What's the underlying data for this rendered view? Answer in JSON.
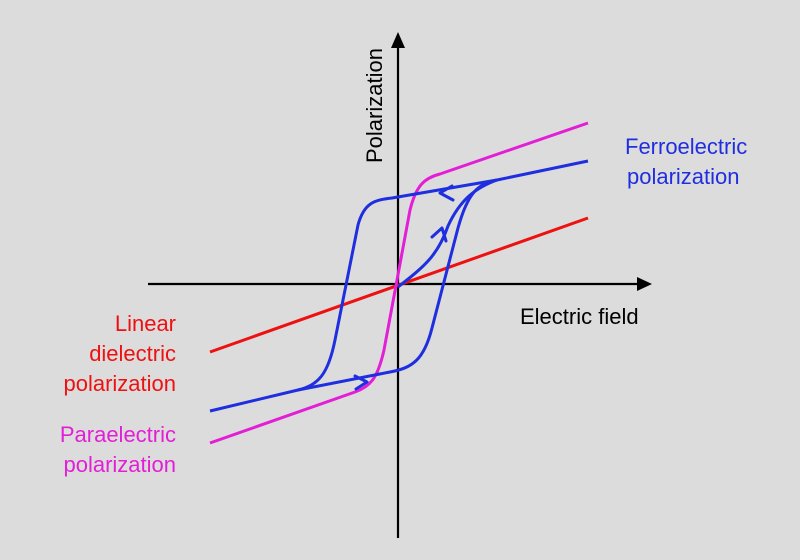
{
  "axes": {
    "x_label": "Electric field",
    "y_label": "Polarization"
  },
  "labels": {
    "ferroelectric": [
      "Ferroelectric",
      "polarization"
    ],
    "linear": [
      "Linear",
      "dielectric",
      "polarization"
    ],
    "paraelectric": [
      "Paraelectric",
      "polarization"
    ]
  },
  "colors": {
    "background": "#dcdcdc",
    "axis": "#000000",
    "ferroelectric": "#1f2fe0",
    "linear": "#ee1111",
    "paraelectric": "#e21fd6"
  },
  "icons": {
    "axis_arrows": "arrowhead",
    "curve_arrows": "chevron-arrow"
  }
}
